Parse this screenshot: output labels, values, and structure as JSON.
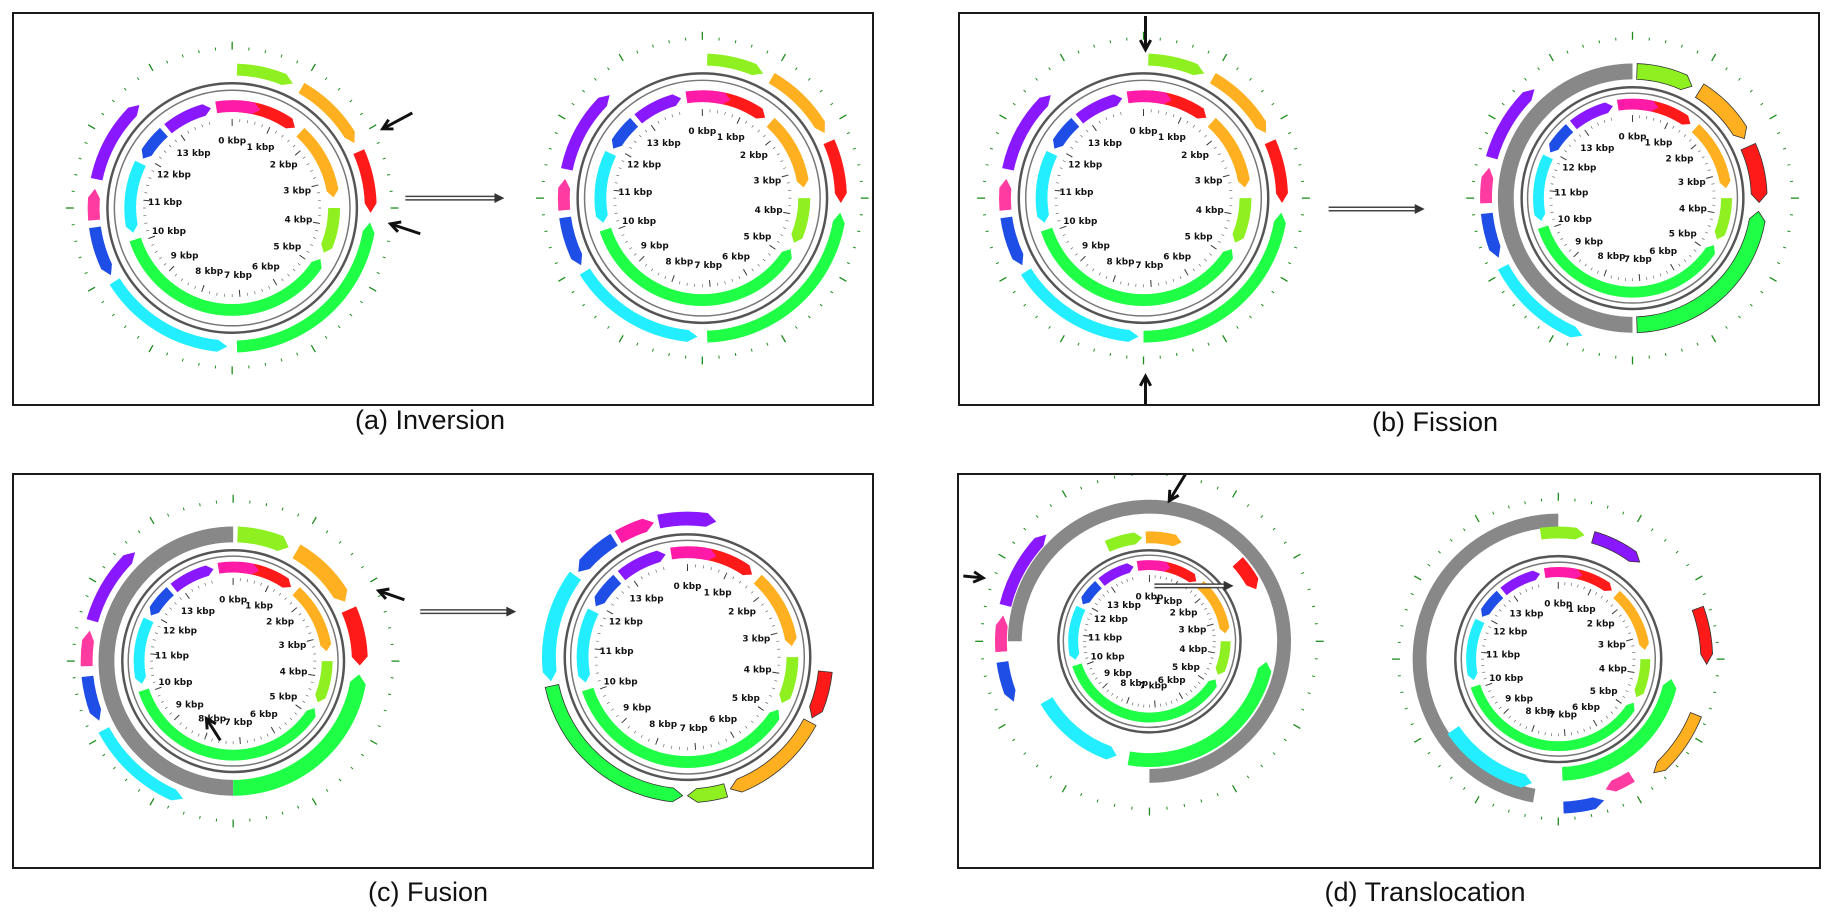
{
  "figure": {
    "genome_ticks": [
      "0 kbp",
      "1 kbp",
      "2 kbp",
      "3 kbp",
      "4 kbp",
      "5 kbp",
      "6 kbp",
      "7 kbp",
      "8 kbp",
      "9 kbp",
      "10 kbp",
      "11 kbp",
      "12 kbp",
      "13 kbp"
    ],
    "colors": {
      "red": "#ff1a1a",
      "magenta": "#ff1aa8",
      "orange": "#ffb020",
      "lime": "#8ef020",
      "green": "#1eff46",
      "cyan": "#22eeff",
      "blue": "#1f4ee6",
      "purple": "#8a18ff",
      "pink": "#ff3aa0",
      "gray": "#888888",
      "ring": "#555555",
      "tick": "#1c8c1c",
      "arrow": "#111111"
    },
    "panels": [
      {
        "id": "a",
        "caption": "(a) Inversion"
      },
      {
        "id": "b",
        "caption": "(b) Fission"
      },
      {
        "id": "c",
        "caption": "(c) Fusion"
      },
      {
        "id": "d",
        "caption": "(d) Translocation"
      }
    ]
  }
}
